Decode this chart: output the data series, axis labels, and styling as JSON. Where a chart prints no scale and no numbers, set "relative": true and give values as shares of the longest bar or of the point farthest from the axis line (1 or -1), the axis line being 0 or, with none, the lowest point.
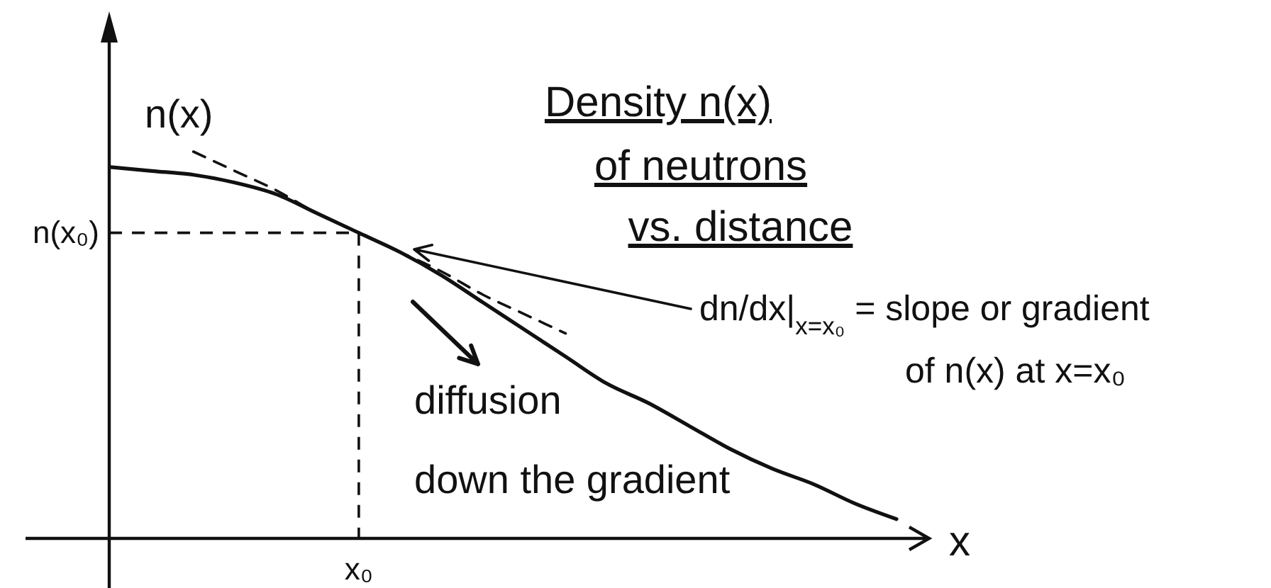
{
  "chart_data": {
    "type": "line",
    "title": "Density n(x) of neutrons vs. distance",
    "xlabel": "x",
    "ylabel": "n(x)",
    "relative": true,
    "categories": [
      null,
      null,
      null,
      null,
      null,
      null,
      null,
      null,
      null,
      null,
      null,
      null,
      null,
      null,
      null,
      null,
      null,
      null,
      null,
      null
    ],
    "series": [
      {
        "color": "#111111",
        "values": [
          0.96,
          0.95,
          0.94,
          0.92,
          0.89,
          0.84,
          0.79,
          0.74,
          0.68,
          0.61,
          0.54,
          0.47,
          0.4,
          0.35,
          0.29,
          0.23,
          0.18,
          0.14,
          0.09,
          0.05
        ]
      },
      {
        "color": "#111111",
        "line_style": "dashed",
        "values": [
          null,
          null,
          1.0,
          0.95,
          0.9,
          0.84,
          0.79,
          0.74,
          0.69,
          0.63,
          0.58,
          0.53,
          null,
          null,
          null,
          null,
          null,
          null,
          null,
          null
        ]
      }
    ],
    "ref_lines": [
      {
        "axis": "y",
        "value": 0.79,
        "label": "n(x₀)",
        "line_style": "dashed"
      }
    ],
    "annotations": [
      "dn/dx|$_{x=x₀}$ = slope or gradient of n(x) at x=x₀",
      "diffusion down the gradient",
      "x₀"
    ]
  }
}
